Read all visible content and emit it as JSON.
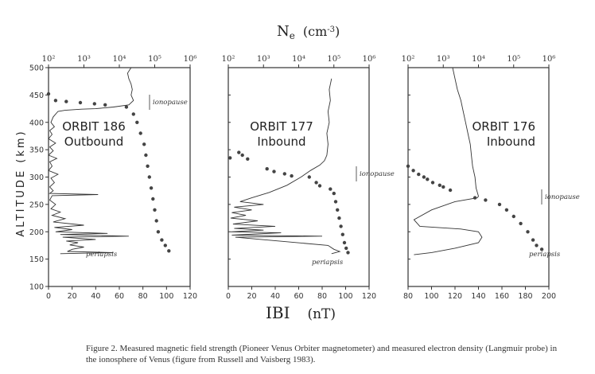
{
  "header": {
    "ne_label": "N",
    "ne_sub": "e",
    "ne_units": "(cm",
    "ne_units_exp": "-3",
    "ne_units_close": ")"
  },
  "axes": {
    "ylabel": "ALTITUDE (km)",
    "xlabel_b": "IBI",
    "xlabel_b_units": "(nT)"
  },
  "caption": {
    "text": "Figure 2.   Measured magnetic field strength (Pioneer Venus Orbiter magnetometer) and measured electron density (Langmuir probe) in the ionosphere of Venus (figure from Russell and Vaisberg 1983)."
  },
  "chart_data": [
    {
      "type": "line",
      "title": "ORBIT 186",
      "subtitle": "Outbound",
      "ylim": [
        100,
        500
      ],
      "yticks": [
        100,
        150,
        200,
        250,
        300,
        350,
        400,
        450,
        500
      ],
      "xlim_b": [
        0,
        120
      ],
      "xticks_b": [
        0,
        20,
        40,
        60,
        80,
        100,
        120
      ],
      "xlim_ne_log": [
        2,
        6
      ],
      "xticks_ne": [
        "10²",
        "10³",
        "10⁴",
        "10⁵",
        "10⁶"
      ],
      "annotations": [
        "ionopause",
        "periapsis"
      ],
      "series": [
        {
          "role": "magnetic_field_B_nT",
          "points": [
            [
              70,
              500
            ],
            [
              67,
              490
            ],
            [
              68,
              480
            ],
            [
              70,
              470
            ],
            [
              71,
              460
            ],
            [
              70,
              450
            ],
            [
              72,
              440
            ],
            [
              68,
              432
            ],
            [
              55,
              428
            ],
            [
              40,
              425
            ],
            [
              28,
              424
            ],
            [
              14,
              422
            ],
            [
              8,
              420
            ],
            [
              4,
              410
            ],
            [
              2,
              400
            ],
            [
              5,
              392
            ],
            [
              1,
              385
            ],
            [
              3,
              378
            ],
            [
              0,
              370
            ],
            [
              6,
              362
            ],
            [
              1,
              355
            ],
            [
              4,
              348
            ],
            [
              0,
              340
            ],
            [
              7,
              334
            ],
            [
              1,
              328
            ],
            [
              3,
              320
            ],
            [
              0,
              312
            ],
            [
              8,
              305
            ],
            [
              2,
              298
            ],
            [
              5,
              290
            ],
            [
              1,
              282
            ],
            [
              4,
              275
            ],
            [
              1,
              270
            ],
            [
              42,
              268
            ],
            [
              3,
              266
            ],
            [
              1,
              258
            ],
            [
              6,
              250
            ],
            [
              2,
              242
            ],
            [
              10,
              236
            ],
            [
              3,
              230
            ],
            [
              14,
              224
            ],
            [
              4,
              218
            ],
            [
              30,
              212
            ],
            [
              5,
              208
            ],
            [
              20,
              204
            ],
            [
              6,
              200
            ],
            [
              50,
              197
            ],
            [
              10,
              195
            ],
            [
              68,
              192
            ],
            [
              12,
              190
            ],
            [
              40,
              186
            ],
            [
              15,
              183
            ],
            [
              25,
              180
            ],
            [
              18,
              176
            ],
            [
              30,
              172
            ],
            [
              20,
              168
            ],
            [
              16,
              164
            ],
            [
              55,
              162
            ],
            [
              10,
              160
            ]
          ]
        },
        {
          "role": "electron_density_log10",
          "points": [
            [
              2.0,
              452
            ],
            [
              2.2,
              440
            ],
            [
              2.5,
              438
            ],
            [
              2.9,
              436
            ],
            [
              3.3,
              434
            ],
            [
              3.6,
              432
            ],
            [
              4.2,
              428
            ],
            [
              4.4,
              415
            ],
            [
              4.5,
              400
            ],
            [
              4.6,
              380
            ],
            [
              4.7,
              360
            ],
            [
              4.75,
              340
            ],
            [
              4.8,
              320
            ],
            [
              4.85,
              300
            ],
            [
              4.9,
              280
            ],
            [
              4.95,
              260
            ],
            [
              5.0,
              240
            ],
            [
              5.05,
              220
            ],
            [
              5.1,
              200
            ],
            [
              5.2,
              185
            ],
            [
              5.3,
              175
            ],
            [
              5.4,
              165
            ]
          ]
        }
      ]
    },
    {
      "type": "line",
      "title": "ORBIT 177",
      "subtitle": "Inbound",
      "ylim": [
        100,
        500
      ],
      "xlim_b": [
        0,
        120
      ],
      "xticks_b": [
        0,
        20,
        40,
        60,
        80,
        100,
        120
      ],
      "xlim_ne_log": [
        2,
        6
      ],
      "xticks_ne": [
        "10²",
        "10³",
        "10⁴",
        "10⁵",
        "10⁶"
      ],
      "annotations": [
        "ionopause",
        "periapsis"
      ],
      "series": [
        {
          "role": "magnetic_field_B_nT",
          "points": [
            [
              88,
              480
            ],
            [
              86,
              460
            ],
            [
              87,
              440
            ],
            [
              85,
              420
            ],
            [
              86,
              400
            ],
            [
              84,
              380
            ],
            [
              85,
              360
            ],
            [
              84,
              340
            ],
            [
              82,
              330
            ],
            [
              78,
              322
            ],
            [
              70,
              312
            ],
            [
              62,
              300
            ],
            [
              50,
              285
            ],
            [
              35,
              272
            ],
            [
              20,
              262
            ],
            [
              10,
              255
            ],
            [
              30,
              250
            ],
            [
              5,
              245
            ],
            [
              20,
              240
            ],
            [
              3,
              235
            ],
            [
              15,
              230
            ],
            [
              2,
              225
            ],
            [
              25,
              220
            ],
            [
              4,
              214
            ],
            [
              40,
              210
            ],
            [
              5,
              206
            ],
            [
              30,
              203
            ],
            [
              2,
              200
            ],
            [
              45,
              198
            ],
            [
              3,
              194
            ],
            [
              80,
              192
            ],
            [
              6,
              190
            ],
            [
              85,
              175
            ],
            [
              90,
              168
            ],
            [
              95,
              164
            ],
            [
              88,
              160
            ]
          ]
        },
        {
          "role": "electron_density_log10",
          "points": [
            [
              2.05,
              335
            ],
            [
              2.3,
              345
            ],
            [
              2.4,
              340
            ],
            [
              2.55,
              333
            ],
            [
              3.1,
              315
            ],
            [
              3.3,
              310
            ],
            [
              3.6,
              306
            ],
            [
              3.8,
              302
            ],
            [
              4.3,
              300
            ],
            [
              4.5,
              290
            ],
            [
              4.6,
              284
            ],
            [
              4.9,
              278
            ],
            [
              5.0,
              270
            ],
            [
              5.05,
              255
            ],
            [
              5.1,
              240
            ],
            [
              5.15,
              225
            ],
            [
              5.2,
              210
            ],
            [
              5.25,
              195
            ],
            [
              5.3,
              180
            ],
            [
              5.35,
              170
            ],
            [
              5.4,
              162
            ]
          ]
        }
      ]
    },
    {
      "type": "line",
      "title": "ORBIT 176",
      "subtitle": "Inbound",
      "ylim": [
        100,
        500
      ],
      "xlim_b": [
        80,
        200
      ],
      "xticks_b": [
        80,
        100,
        120,
        140,
        160,
        180,
        200
      ],
      "xlim_ne_log": [
        2,
        6
      ],
      "xticks_ne": [
        "10²",
        "10³",
        "10⁴",
        "10⁵",
        "10⁶"
      ],
      "annotations": [
        "ionopause",
        "periapsis"
      ],
      "series": [
        {
          "role": "magnetic_field_B_nT",
          "points": [
            [
              118,
              500
            ],
            [
              120,
              480
            ],
            [
              122,
              460
            ],
            [
              125,
              440
            ],
            [
              127,
              420
            ],
            [
              129,
              400
            ],
            [
              131,
              380
            ],
            [
              133,
              360
            ],
            [
              134,
              340
            ],
            [
              135,
              320
            ],
            [
              137,
              300
            ],
            [
              138,
              280
            ],
            [
              140,
              265
            ],
            [
              139,
              262
            ],
            [
              120,
              255
            ],
            [
              100,
              240
            ],
            [
              85,
              222
            ],
            [
              90,
              210
            ],
            [
              125,
              205
            ],
            [
              140,
              200
            ],
            [
              143,
              190
            ],
            [
              140,
              180
            ],
            [
              120,
              170
            ],
            [
              100,
              162
            ],
            [
              85,
              158
            ]
          ]
        },
        {
          "role": "electron_density_log10",
          "points": [
            [
              2.0,
              320
            ],
            [
              2.15,
              312
            ],
            [
              2.3,
              305
            ],
            [
              2.45,
              300
            ],
            [
              2.55,
              296
            ],
            [
              2.7,
              290
            ],
            [
              2.9,
              285
            ],
            [
              3.0,
              282
            ],
            [
              3.2,
              276
            ],
            [
              3.9,
              262
            ],
            [
              4.2,
              258
            ],
            [
              4.6,
              250
            ],
            [
              4.8,
              240
            ],
            [
              5.0,
              228
            ],
            [
              5.2,
              215
            ],
            [
              5.4,
              200
            ],
            [
              5.55,
              185
            ],
            [
              5.65,
              175
            ],
            [
              5.8,
              168
            ]
          ]
        }
      ]
    }
  ]
}
